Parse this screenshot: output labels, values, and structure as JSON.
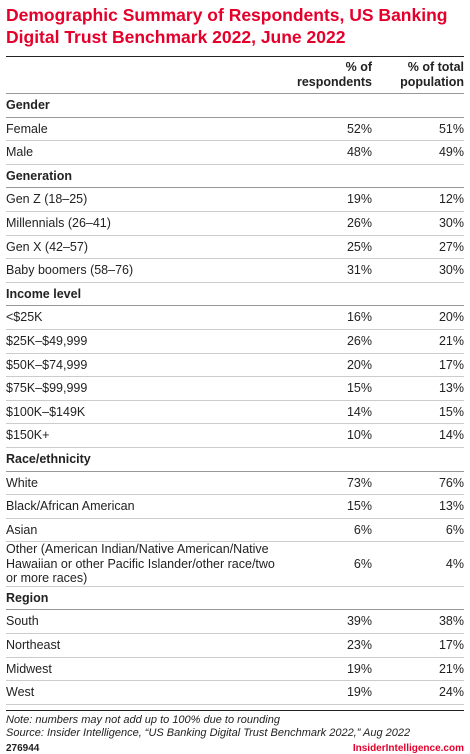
{
  "header": {
    "title": "Demographic Summary of Respondents, US Banking Digital Trust Benchmark 2022, June 2022"
  },
  "table": {
    "columns": [
      "% of respondents",
      "% of total population"
    ],
    "sections": [
      {
        "heading": "Gender",
        "rows": [
          [
            "Female",
            "52%",
            "51%"
          ],
          [
            "Male",
            "48%",
            "49%"
          ]
        ]
      },
      {
        "heading": "Generation",
        "rows": [
          [
            "Gen Z (18–25)",
            "19%",
            "12%"
          ],
          [
            "Millennials (26–41)",
            "26%",
            "30%"
          ],
          [
            "Gen X (42–57)",
            "25%",
            "27%"
          ],
          [
            "Baby boomers (58–76)",
            "31%",
            "30%"
          ]
        ]
      },
      {
        "heading": "Income level",
        "rows": [
          [
            "<$25K",
            "16%",
            "20%"
          ],
          [
            "$25K–$49,999",
            "26%",
            "21%"
          ],
          [
            "$50K–$74,999",
            "20%",
            "17%"
          ],
          [
            "$75K–$99,999",
            "15%",
            "13%"
          ],
          [
            "$100K–$149K",
            "14%",
            "15%"
          ],
          [
            "$150K+",
            "10%",
            "14%"
          ]
        ]
      },
      {
        "heading": "Race/ethnicity",
        "rows": [
          [
            "White",
            "73%",
            "76%"
          ],
          [
            "Black/African American",
            "15%",
            "13%"
          ],
          [
            "Asian",
            "6%",
            "6%"
          ],
          [
            "Other (American Indian/Native American/Native Hawaiian or other Pacific Islander/other race/two or more races)",
            "6%",
            "4%"
          ]
        ]
      },
      {
        "heading": "Region",
        "rows": [
          [
            "South",
            "39%",
            "38%"
          ],
          [
            "Northeast",
            "23%",
            "17%"
          ],
          [
            "Midwest",
            "19%",
            "21%"
          ],
          [
            "West",
            "19%",
            "24%"
          ]
        ]
      }
    ]
  },
  "footer": {
    "note": "Note: numbers may not add up to 100% due to rounding",
    "source": "Source: Insider Intelligence, “US Banking Digital Trust Benchmark 2022,” Aug 2022",
    "id": "276944",
    "brand": "InsiderIntelligence.com"
  }
}
